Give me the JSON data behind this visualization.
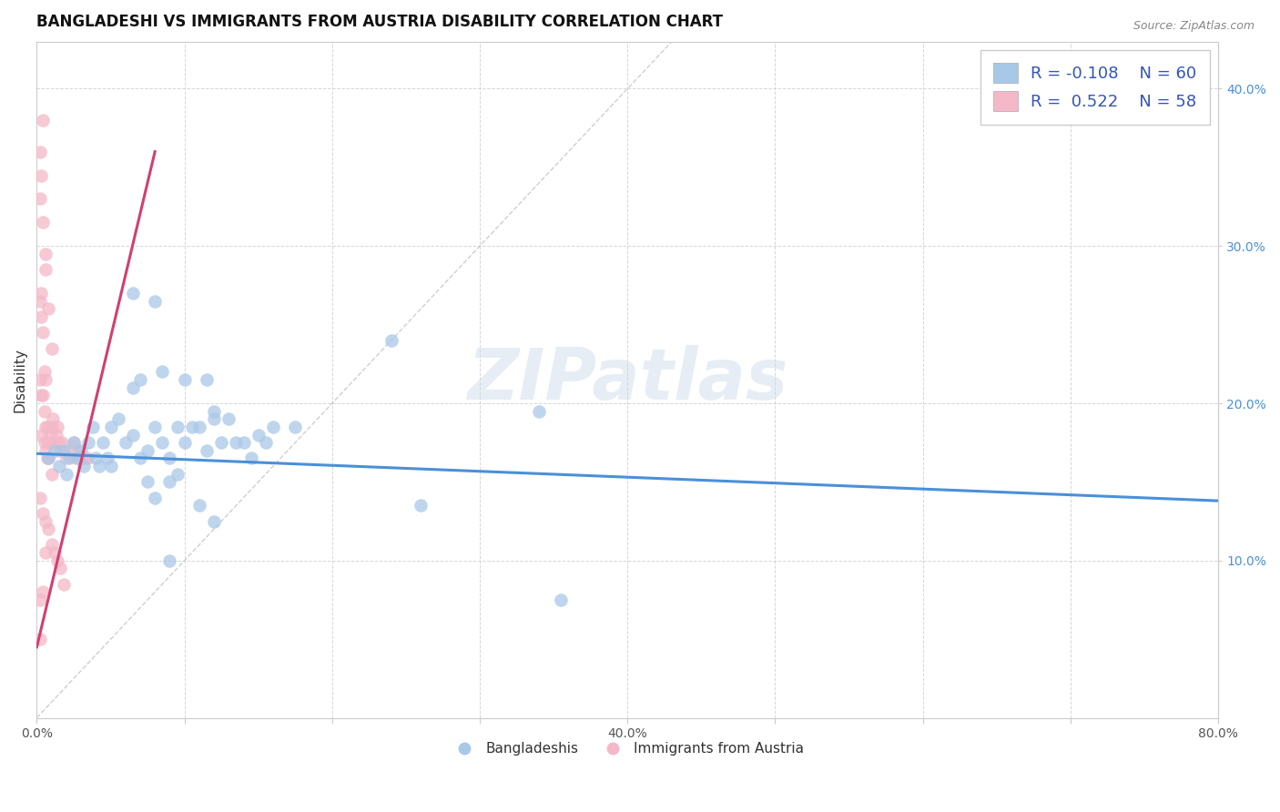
{
  "title": "BANGLADESHI VS IMMIGRANTS FROM AUSTRIA DISABILITY CORRELATION CHART",
  "source": "Source: ZipAtlas.com",
  "xlabel": "",
  "ylabel": "Disability",
  "watermark": "ZIPatlas",
  "xlim": [
    0.0,
    0.8
  ],
  "ylim": [
    0.0,
    0.43
  ],
  "xticks": [
    0.0,
    0.1,
    0.2,
    0.3,
    0.4,
    0.5,
    0.6,
    0.7,
    0.8
  ],
  "xticklabels": [
    "0.0%",
    "",
    "",
    "",
    "40.0%",
    "",
    "",
    "",
    "80.0%"
  ],
  "yticks": [
    0.1,
    0.2,
    0.3,
    0.4
  ],
  "yticklabels": [
    "10.0%",
    "20.0%",
    "30.0%",
    "40.0%"
  ],
  "legend_r1": "R = -0.108",
  "legend_n1": "N = 60",
  "legend_r2": "R =  0.522",
  "legend_n2": "N = 58",
  "blue_color": "#a8c8e8",
  "pink_color": "#f4b8c8",
  "blue_line_color": "#4a90d9",
  "pink_line_color": "#d04070",
  "trend_line_blue": [
    [
      0.0,
      0.168
    ],
    [
      0.8,
      0.138
    ]
  ],
  "trend_line_pink": [
    [
      0.0,
      0.045
    ],
    [
      0.08,
      0.36
    ]
  ],
  "diag_line": [
    [
      0.0,
      0.0
    ],
    [
      0.43,
      0.43
    ]
  ],
  "blue_scatter": [
    [
      0.008,
      0.165
    ],
    [
      0.012,
      0.17
    ],
    [
      0.015,
      0.16
    ],
    [
      0.018,
      0.17
    ],
    [
      0.02,
      0.155
    ],
    [
      0.022,
      0.165
    ],
    [
      0.025,
      0.175
    ],
    [
      0.028,
      0.165
    ],
    [
      0.03,
      0.17
    ],
    [
      0.032,
      0.16
    ],
    [
      0.035,
      0.175
    ],
    [
      0.038,
      0.185
    ],
    [
      0.04,
      0.165
    ],
    [
      0.042,
      0.16
    ],
    [
      0.045,
      0.175
    ],
    [
      0.048,
      0.165
    ],
    [
      0.05,
      0.185
    ],
    [
      0.055,
      0.19
    ],
    [
      0.06,
      0.175
    ],
    [
      0.065,
      0.18
    ],
    [
      0.07,
      0.165
    ],
    [
      0.075,
      0.17
    ],
    [
      0.08,
      0.185
    ],
    [
      0.085,
      0.175
    ],
    [
      0.09,
      0.165
    ],
    [
      0.095,
      0.185
    ],
    [
      0.1,
      0.175
    ],
    [
      0.105,
      0.185
    ],
    [
      0.11,
      0.185
    ],
    [
      0.115,
      0.17
    ],
    [
      0.12,
      0.19
    ],
    [
      0.125,
      0.175
    ],
    [
      0.13,
      0.19
    ],
    [
      0.135,
      0.175
    ],
    [
      0.14,
      0.175
    ],
    [
      0.145,
      0.165
    ],
    [
      0.15,
      0.18
    ],
    [
      0.155,
      0.175
    ],
    [
      0.07,
      0.215
    ],
    [
      0.085,
      0.22
    ],
    [
      0.1,
      0.215
    ],
    [
      0.065,
      0.21
    ],
    [
      0.11,
      0.135
    ],
    [
      0.12,
      0.125
    ],
    [
      0.075,
      0.15
    ],
    [
      0.09,
      0.15
    ],
    [
      0.08,
      0.14
    ],
    [
      0.095,
      0.155
    ],
    [
      0.08,
      0.265
    ],
    [
      0.115,
      0.215
    ],
    [
      0.12,
      0.195
    ],
    [
      0.16,
      0.185
    ],
    [
      0.175,
      0.185
    ],
    [
      0.24,
      0.24
    ],
    [
      0.26,
      0.135
    ],
    [
      0.065,
      0.27
    ],
    [
      0.09,
      0.1
    ],
    [
      0.05,
      0.16
    ],
    [
      0.34,
      0.195
    ],
    [
      0.355,
      0.075
    ]
  ],
  "pink_scatter": [
    [
      0.002,
      0.215
    ],
    [
      0.004,
      0.245
    ],
    [
      0.006,
      0.285
    ],
    [
      0.002,
      0.265
    ],
    [
      0.004,
      0.315
    ],
    [
      0.002,
      0.33
    ],
    [
      0.003,
      0.205
    ],
    [
      0.005,
      0.22
    ],
    [
      0.006,
      0.215
    ],
    [
      0.003,
      0.255
    ],
    [
      0.004,
      0.205
    ],
    [
      0.005,
      0.195
    ],
    [
      0.006,
      0.185
    ],
    [
      0.007,
      0.185
    ],
    [
      0.003,
      0.18
    ],
    [
      0.005,
      0.175
    ],
    [
      0.006,
      0.17
    ],
    [
      0.007,
      0.165
    ],
    [
      0.008,
      0.175
    ],
    [
      0.009,
      0.18
    ],
    [
      0.01,
      0.185
    ],
    [
      0.011,
      0.19
    ],
    [
      0.012,
      0.175
    ],
    [
      0.013,
      0.18
    ],
    [
      0.014,
      0.185
    ],
    [
      0.015,
      0.175
    ],
    [
      0.016,
      0.17
    ],
    [
      0.017,
      0.175
    ],
    [
      0.02,
      0.165
    ],
    [
      0.022,
      0.17
    ],
    [
      0.025,
      0.175
    ],
    [
      0.026,
      0.165
    ],
    [
      0.028,
      0.17
    ],
    [
      0.03,
      0.165
    ],
    [
      0.032,
      0.165
    ],
    [
      0.034,
      0.165
    ],
    [
      0.002,
      0.14
    ],
    [
      0.004,
      0.13
    ],
    [
      0.006,
      0.125
    ],
    [
      0.008,
      0.12
    ],
    [
      0.01,
      0.11
    ],
    [
      0.012,
      0.105
    ],
    [
      0.014,
      0.1
    ],
    [
      0.016,
      0.095
    ],
    [
      0.018,
      0.085
    ],
    [
      0.002,
      0.075
    ],
    [
      0.004,
      0.08
    ],
    [
      0.006,
      0.105
    ],
    [
      0.008,
      0.165
    ],
    [
      0.01,
      0.155
    ],
    [
      0.004,
      0.38
    ],
    [
      0.003,
      0.345
    ],
    [
      0.002,
      0.36
    ],
    [
      0.006,
      0.295
    ],
    [
      0.008,
      0.26
    ],
    [
      0.01,
      0.235
    ],
    [
      0.003,
      0.27
    ],
    [
      0.002,
      0.05
    ]
  ],
  "background_color": "#ffffff",
  "grid_color": "#cccccc",
  "title_fontsize": 12,
  "axis_label_fontsize": 11,
  "tick_fontsize": 10,
  "legend_fontsize": 13
}
